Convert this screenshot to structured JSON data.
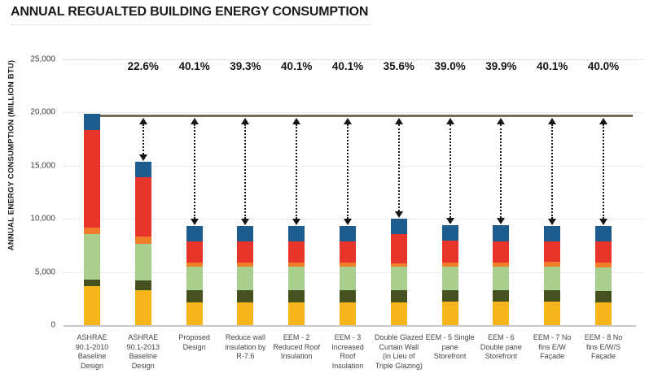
{
  "chart_data": {
    "type": "bar",
    "stacked": true,
    "title": "ANNUAL REGUALTED BUILDING ENERGY CONSUMPTION",
    "ylabel": "ANNUAL ENERGY CONSUMPTION (MILLION BTU)",
    "ylim": [
      0,
      25000
    ],
    "yticks": [
      0,
      5000,
      10000,
      15000,
      20000,
      25000
    ],
    "ytick_labels": [
      "0",
      "5,000",
      "10,000",
      "15,000",
      "20,000",
      "25,000"
    ],
    "grid": "horizontal-dotted",
    "legend": "none",
    "reference_line": {
      "value": 19700,
      "color": "#72705A"
    },
    "percent_labels": [
      null,
      "22.6%",
      "40.1%",
      "39.3%",
      "40.1%",
      "40.1%",
      "35.6%",
      "39.0%",
      "39.9%",
      "40.1%",
      "40.0%"
    ],
    "categories": [
      "ASHRAE 90.1-2010 Baseline Design",
      "ASHRAE 90.1-2013 Baseline Design",
      "Proposed Design",
      "Reduce wall insulation by R-7.6",
      "EEM - 2 Reduced Roof Insulation",
      "EEM - 3 Increased Roof Insulation",
      "Double Glazed Curtain Wall (in Lieu of Triple Glazing)",
      "EEM - 5 Single pane Storefront",
      "EEM - 6 Double pane Storefront",
      "EEM - 7 No fins E/W Façade",
      "EEM - 8 No fins E/W/S Façade"
    ],
    "category_lines": [
      [
        "ASHRAE",
        "90.1-2010",
        "Baseline",
        "Design"
      ],
      [
        "ASHRAE",
        "90.1-2013",
        "Baseline",
        "Design"
      ],
      [
        "Proposed",
        "Design"
      ],
      [
        "Reduce wall",
        "insulation by",
        "R-7.6"
      ],
      [
        "EEM - 2",
        "Reduced Roof",
        "Insulation"
      ],
      [
        "EEM - 3",
        "Increased",
        "Roof",
        "Insulation"
      ],
      [
        "Double Glazed",
        "Curtain Wall",
        "(in Lieu of",
        "Triple Glazing)"
      ],
      [
        "EEM - 5 Single",
        "pane",
        "Storefront"
      ],
      [
        "EEM - 6",
        "Double pane",
        "Storefront"
      ],
      [
        "EEM - 7 No",
        "fins E/W",
        "Façade"
      ],
      [
        "EEM - 8 No",
        "fins E/W/S",
        "Façade"
      ]
    ],
    "truncated_category": "A",
    "series": [
      {
        "name": "yellow-segment",
        "color": "#F7B41B",
        "values": [
          3700,
          3300,
          2150,
          2150,
          2150,
          2150,
          2150,
          2250,
          2200,
          2200,
          2100
        ]
      },
      {
        "name": "dark-green-segment",
        "color": "#45511F",
        "values": [
          600,
          900,
          1150,
          1150,
          1150,
          1150,
          1100,
          1050,
          1100,
          1050,
          1100
        ]
      },
      {
        "name": "light-green-segment",
        "color": "#A8CF8D",
        "values": [
          4250,
          3450,
          2200,
          2200,
          2200,
          2200,
          2250,
          2200,
          2200,
          2250,
          2250
        ]
      },
      {
        "name": "orange-segment",
        "color": "#EF7D2A",
        "values": [
          620,
          700,
          400,
          400,
          400,
          400,
          300,
          350,
          400,
          450,
          400
        ]
      },
      {
        "name": "red-segment",
        "color": "#E7352B",
        "values": [
          9180,
          5550,
          2000,
          2000,
          2000,
          2000,
          2750,
          2100,
          2000,
          1930,
          2050
        ]
      },
      {
        "name": "blue-segment",
        "color": "#1E5C8D",
        "values": [
          1530,
          1500,
          1400,
          1400,
          1400,
          1400,
          1450,
          1450,
          1500,
          1450,
          1450
        ]
      }
    ],
    "bar_totals": [
      19880,
      15400,
      9300,
      9300,
      9300,
      9300,
      10000,
      9400,
      9400,
      9330,
      9350
    ]
  },
  "palette": {
    "gridline": "#d9d9d9",
    "axis_line": "#c9c9c9",
    "arrow": "#151515",
    "title_text": "#1a1a1a",
    "tick_text": "#3c3c3c",
    "category_text": "#444444"
  }
}
